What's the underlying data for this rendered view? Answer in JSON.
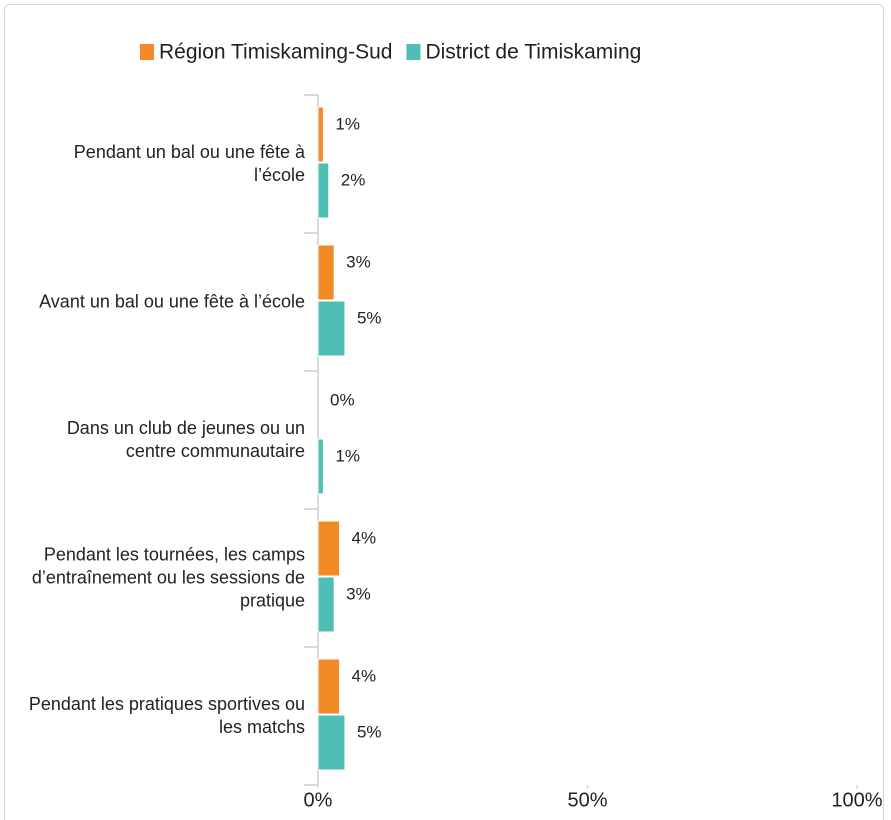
{
  "chart_data": {
    "type": "bar",
    "orientation": "horizontal",
    "categories": [
      "Pendant un bal ou une fête à l’école",
      "Avant un bal ou une fête à l’école",
      "Dans un club de jeunes ou un centre communautaire",
      "Pendant les tournées, les camps d’entraînement ou les sessions de pratique",
      "Pendant les pratiques sportives ou les matchs"
    ],
    "series": [
      {
        "name": "Région Timiskaming-Sud",
        "color": "#f28a26",
        "values": [
          1,
          3,
          0,
          4,
          4
        ],
        "value_labels": [
          "1%",
          "3%",
          "0%",
          "4%",
          "4%"
        ]
      },
      {
        "name": "District de Timiskaming",
        "color": "#4fbfb5",
        "values": [
          2,
          5,
          1,
          3,
          5
        ],
        "value_labels": [
          "2%",
          "5%",
          "1%",
          "3%",
          "5%"
        ]
      }
    ],
    "xlim": [
      0,
      100
    ],
    "xticks": [
      {
        "value": 0,
        "label": "0%"
      },
      {
        "value": 50,
        "label": "50%"
      },
      {
        "value": 100,
        "label": "100%"
      }
    ],
    "legend": "top"
  }
}
